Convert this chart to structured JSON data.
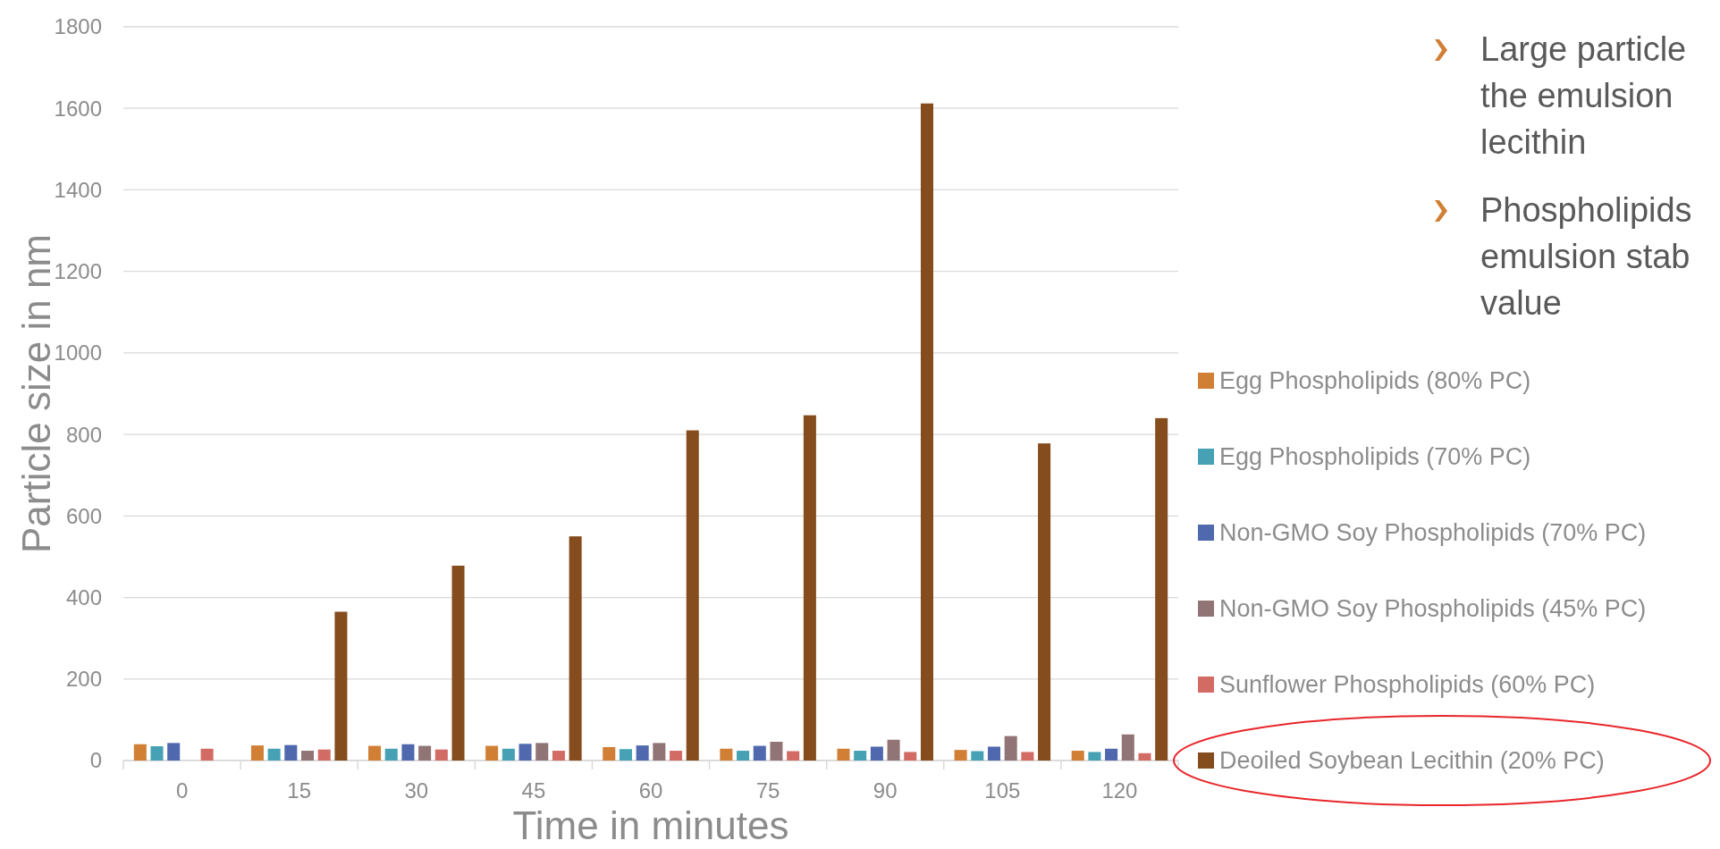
{
  "chart_data": {
    "type": "bar",
    "xlabel": "Time in minutes",
    "ylabel": "Particle size in nm",
    "categories": [
      "0",
      "15",
      "30",
      "45",
      "60",
      "75",
      "90",
      "105",
      "120"
    ],
    "ylim": [
      0,
      1800
    ],
    "yticks": [
      0,
      200,
      400,
      600,
      800,
      1000,
      1200,
      1400,
      1600,
      1800
    ],
    "grid": "y",
    "legend": "right",
    "series": [
      {
        "name": "Egg Phospholipids (80% PC)",
        "color": "#d17f35",
        "values": [
          40,
          37,
          36,
          36,
          33,
          29,
          29,
          26,
          24
        ]
      },
      {
        "name": "Egg Phospholipids (70% PC)",
        "color": "#46a1b5",
        "values": [
          35,
          29,
          29,
          29,
          28,
          24,
          24,
          23,
          21
        ]
      },
      {
        "name": "Non-GMO Soy Phospholipids (70% PC)",
        "color": "#5068ad",
        "values": [
          43,
          38,
          40,
          41,
          37,
          36,
          34,
          34,
          29
        ]
      },
      {
        "name": "Non-GMO Soy Phospholipids (45% PC)",
        "color": "#917475",
        "values": [
          null,
          24,
          36,
          43,
          43,
          46,
          51,
          60,
          64
        ]
      },
      {
        "name": "Sunflower Phospholipids (60% PC)",
        "color": "#d36b65",
        "values": [
          29,
          27,
          27,
          24,
          24,
          23,
          21,
          21,
          18
        ]
      },
      {
        "name": "Deoiled Soybean Lecithin (20% PC)",
        "color": "#854c1e",
        "values": [
          null,
          365,
          478,
          550,
          810,
          847,
          1612,
          778,
          840
        ]
      }
    ],
    "annotations": [
      "Large particle\nthe emulsion\nlecithin",
      "Phospholipids\nemulsion stab\nvalue"
    ]
  }
}
